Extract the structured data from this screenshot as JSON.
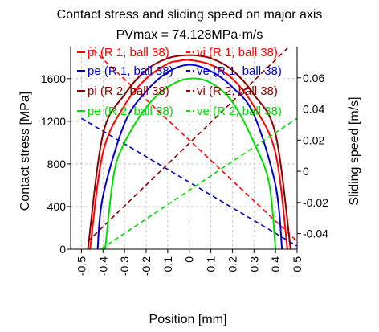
{
  "chart_data": {
    "type": "line",
    "title": "Contact stress and sliding speed on major axis",
    "subtitle": "PVmax = 74.128MPa·m/s",
    "xlabel": "Position [mm]",
    "ylabel": "Contact stress [MPa]",
    "y2label": "Sliding speed [m/s]",
    "xlim": [
      -0.55,
      0.5
    ],
    "ylim": [
      0,
      1900
    ],
    "y2lim": [
      -0.05,
      0.08
    ],
    "x_ticks": [
      "-0.5",
      "-0.4",
      "-0.3",
      "-0.2",
      "-0.1",
      "0",
      "0.1",
      "0.2",
      "0.3",
      "0.4",
      "0.5"
    ],
    "y_ticks": [
      "0",
      "400",
      "800",
      "1200",
      "1600"
    ],
    "y2_ticks": [
      "-0.04",
      "-0.02",
      "0",
      "0.02",
      "0.04",
      "0.06"
    ],
    "grid": true,
    "legend": "top",
    "colors": {
      "dark_red": "#8b0000",
      "red": "#ff0000",
      "blue": "#0000cc",
      "green": "#00dd00"
    },
    "series": [
      {
        "name": "pi (R 1, ball 38)",
        "axis": "left",
        "style": "solid",
        "color": "#ff0000",
        "x": [
          -0.46,
          -0.4,
          -0.3,
          -0.2,
          -0.1,
          -0.05,
          0,
          0.1,
          0.2,
          0.3,
          0.4,
          0.455
        ],
        "y": [
          0,
          910,
          1350,
          1600,
          1740,
          1765,
          1775,
          1730,
          1600,
          1340,
          900,
          0
        ]
      },
      {
        "name": "vi (R 1, ball 38)",
        "axis": "right",
        "style": "dashed",
        "color": "#ff0000",
        "x": [
          -0.5,
          0.5
        ],
        "y": [
          0.085,
          -0.045
        ]
      },
      {
        "name": "pe (R 1, ball 38)",
        "axis": "left",
        "style": "solid",
        "color": "#0000cc",
        "x": [
          -0.425,
          -0.4,
          -0.3,
          -0.2,
          -0.1,
          0,
          0.1,
          0.2,
          0.3,
          0.4,
          0.43
        ],
        "y": [
          0,
          500,
          1180,
          1480,
          1660,
          1730,
          1670,
          1520,
          1260,
          600,
          0
        ]
      },
      {
        "name": "ve (R 1, ball 38)",
        "axis": "right",
        "style": "dashed",
        "color": "#0000cc",
        "x": [
          -0.5,
          0.5
        ],
        "y": [
          0.034,
          -0.048
        ]
      },
      {
        "name": "pi (R 2, ball 38)",
        "axis": "left",
        "style": "solid",
        "color": "#8b0000",
        "x": [
          -0.47,
          -0.4,
          -0.3,
          -0.2,
          -0.1,
          0,
          0.1,
          0.2,
          0.3,
          0.4,
          0.47
        ],
        "y": [
          0,
          1080,
          1450,
          1680,
          1790,
          1820,
          1790,
          1680,
          1450,
          1080,
          0
        ]
      },
      {
        "name": "vi (R 2, ball 38)",
        "axis": "right",
        "style": "dashed",
        "color": "#8b0000",
        "x": [
          -0.47,
          0.5
        ],
        "y": [
          -0.045,
          0.085
        ]
      },
      {
        "name": "pe (R 2, ball 38)",
        "axis": "left",
        "style": "solid",
        "color": "#00dd00",
        "x": [
          -0.39,
          -0.35,
          -0.3,
          -0.2,
          -0.1,
          0,
          0.1,
          0.2,
          0.3,
          0.37,
          0.4
        ],
        "y": [
          0,
          700,
          1000,
          1330,
          1520,
          1600,
          1560,
          1380,
          1000,
          620,
          0
        ]
      },
      {
        "name": "ve (R 2, ball 38)",
        "axis": "right",
        "style": "dashed",
        "color": "#00dd00",
        "x": [
          -0.41,
          0.5
        ],
        "y": [
          -0.05,
          0.034
        ]
      }
    ]
  }
}
